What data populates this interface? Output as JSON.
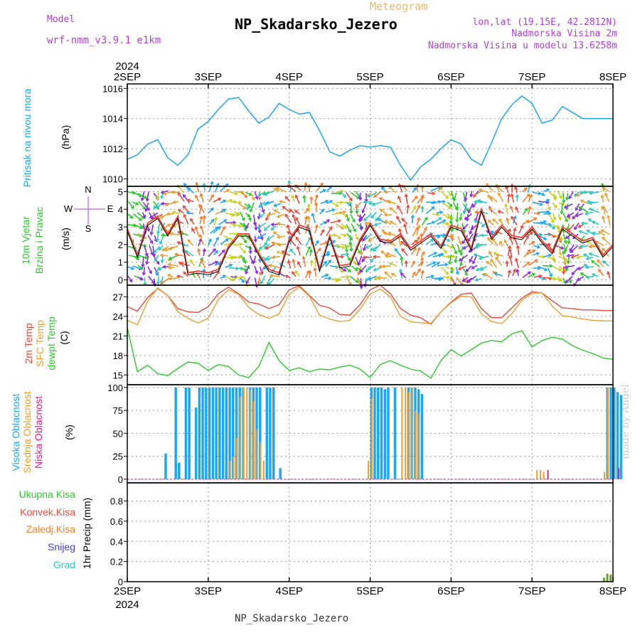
{
  "header": {
    "model_label": "Model",
    "model_name": "wrf-nmm_v3.9.1  e1km",
    "meteogram_label": "Meteogram",
    "station_title": "NP_Skadarsko_Jezero",
    "lonlat": "lon,lat (19.15E, 42.2812N)",
    "elevation": "Nadmorska Visina 2m",
    "model_elevation": "Nadmorska Visina u modelu 13.6258m",
    "footer_title": "NP_Skadarsko_Jezero",
    "watermark": "made by Angel"
  },
  "time_axis": {
    "year": "2024",
    "days": [
      "2SEP",
      "3SEP",
      "4SEP",
      "5SEP",
      "6SEP",
      "7SEP",
      "8SEP"
    ]
  },
  "panel_labels": {
    "pressure": {
      "name": "Pritisak na nivou mora",
      "unit": "(hPa)",
      "color": "#1ea7f0"
    },
    "wind": {
      "name1": "10m Vjetar",
      "name2": "Brzina i Pravac",
      "unit": "(m/s)",
      "compass_n": "N",
      "compass_s": "S",
      "compass_w": "W",
      "compass_e": "E",
      "color": "#2ec82e",
      "compass_color": "#b040d8"
    },
    "temp": {
      "t2": "2m Temp",
      "sfc": "SFC Temp",
      "dew": "dewpt Temp",
      "unit": "(C)",
      "t2_color": "#e84a3c",
      "sfc_color": "#e9a030",
      "dew_color": "#2ec82e"
    },
    "cloud": {
      "high": "Visoka Oblacnost",
      "mid": "Srednja Oblacnost",
      "low": "Niska Oblacnost",
      "unit": "(%)",
      "high_color": "#1ea7f0",
      "mid_color": "#e9a030",
      "low_color": "#e0208a"
    },
    "precip": {
      "ukupna": "Ukupna Kisa",
      "konvek": "Konvek.Kisa",
      "zaledj": "Zaledj.Kisa",
      "snijeg": "Snijeg",
      "grad": "Grad",
      "unit": "1hr Precip (mm)",
      "ukupna_color": "#2ec82e",
      "konvek_color": "#e84a3c",
      "zaledj_color": "#f08030",
      "snijeg_color": "#4040e0",
      "grad_color": "#30c8c0"
    }
  },
  "chart_data": [
    {
      "type": "line",
      "name": "pressure",
      "ylabel": "(hPa)",
      "ylim": [
        1009.5,
        1016.3
      ],
      "yticks": [
        1010,
        1012,
        1014,
        1016
      ],
      "x_hours": [
        0,
        3,
        6,
        9,
        12,
        15,
        18,
        21,
        24,
        27,
        30,
        33,
        36,
        39,
        42,
        45,
        48,
        51,
        54,
        57,
        60,
        63,
        66,
        69,
        72,
        75,
        78,
        81,
        84,
        87,
        90,
        93,
        96,
        99,
        102,
        105,
        108,
        111,
        114,
        117,
        120,
        123,
        126,
        129,
        132,
        135,
        138,
        141,
        144
      ],
      "series": [
        {
          "name": "Pritisak na nivou mora",
          "values": [
            1011.3,
            1011.6,
            1012.3,
            1012.6,
            1011.4,
            1010.9,
            1011.6,
            1013.3,
            1013.8,
            1014.6,
            1015.3,
            1015.4,
            1014.5,
            1013.7,
            1014.1,
            1015.0,
            1014.6,
            1014.3,
            1014.4,
            1013.2,
            1011.8,
            1011.5,
            1011.9,
            1012.2,
            1012.1,
            1012.2,
            1012.1,
            1010.9,
            1009.9,
            1010.8,
            1011.3,
            1012.0,
            1012.6,
            1012.3,
            1011.3,
            1010.9,
            1012.4,
            1014.0,
            1014.9,
            1015.5,
            1015.0,
            1013.7,
            1013.9,
            1014.8,
            1014.4,
            1014.0,
            1014.0,
            1014.0,
            1014.0
          ]
        }
      ]
    },
    {
      "type": "line",
      "name": "wind",
      "ylabel": "(m/s)",
      "ylim": [
        -0.3,
        5.3
      ],
      "yticks": [
        0,
        1,
        2,
        3,
        4,
        5
      ],
      "x_hours": [
        0,
        3,
        6,
        9,
        12,
        15,
        18,
        21,
        24,
        27,
        30,
        33,
        36,
        39,
        42,
        45,
        48,
        51,
        54,
        57,
        60,
        63,
        66,
        69,
        72,
        75,
        78,
        81,
        84,
        87,
        90,
        93,
        96,
        99,
        102,
        105,
        108,
        111,
        114,
        117,
        120,
        123,
        126,
        129,
        132,
        135,
        138,
        141,
        144
      ],
      "series": [
        {
          "name": "Brzina",
          "values": [
            2.9,
            1.4,
            3.2,
            3.6,
            2.6,
            3.6,
            0.4,
            0.5,
            0.4,
            0.6,
            1.9,
            2.6,
            2.6,
            1.5,
            0.6,
            0.4,
            2.3,
            3.1,
            2.9,
            0.6,
            2.5,
            0.8,
            0.9,
            2.3,
            3.2,
            2.3,
            2.2,
            2.6,
            1.8,
            2.2,
            2.6,
            1.9,
            3.1,
            2.9,
            1.8,
            4.0,
            2.4,
            3.1,
            2.5,
            2.4,
            3.0,
            2.2,
            1.6,
            3.0,
            2.6,
            2.2,
            2.4,
            1.4,
            2.0
          ]
        }
      ]
    },
    {
      "type": "line",
      "name": "temperature",
      "ylabel": "(C)",
      "ylim": [
        13.5,
        28.8
      ],
      "yticks": [
        15,
        18,
        21,
        24,
        27
      ],
      "x_hours": [
        0,
        3,
        6,
        9,
        12,
        15,
        18,
        21,
        24,
        27,
        30,
        33,
        36,
        39,
        42,
        45,
        48,
        51,
        54,
        57,
        60,
        63,
        66,
        69,
        72,
        75,
        78,
        81,
        84,
        87,
        90,
        93,
        96,
        99,
        102,
        105,
        108,
        111,
        114,
        117,
        120,
        123,
        126,
        129,
        132,
        135,
        138,
        141,
        144
      ],
      "series": [
        {
          "name": "2m Temp",
          "values": [
            25.5,
            24.8,
            26.9,
            28.3,
            27.2,
            25.2,
            24.7,
            24.6,
            25.5,
            27.5,
            28.5,
            27.5,
            26.2,
            25.9,
            25.2,
            25.8,
            28.1,
            28.7,
            27.2,
            25.7,
            25.3,
            24.3,
            24.2,
            25.8,
            28.1,
            28.8,
            27.5,
            25.2,
            24.2,
            23.8,
            22.8,
            24.7,
            26.2,
            27.4,
            27.6,
            25.2,
            23.8,
            23.8,
            25.3,
            26.8,
            27.8,
            27.6,
            26.4,
            25.3,
            25.2,
            25.0,
            25.0,
            24.9,
            24.9
          ]
        },
        {
          "name": "SFC Temp",
          "values": [
            23.4,
            22.7,
            26.3,
            28.4,
            27.2,
            24.7,
            23.7,
            23.0,
            23.7,
            26.6,
            28.1,
            27.4,
            25.4,
            24.3,
            23.7,
            24.4,
            27.4,
            28.5,
            27.1,
            24.2,
            23.6,
            23.2,
            23.4,
            25.1,
            27.4,
            28.2,
            27.0,
            24.0,
            23.2,
            23.0,
            22.9,
            24.7,
            26.1,
            27.1,
            27.0,
            24.4,
            23.2,
            22.9,
            24.4,
            26.5,
            27.6,
            27.6,
            25.6,
            24.1,
            23.9,
            23.6,
            23.4,
            23.3,
            23.3
          ]
        },
        {
          "name": "dewpt Temp",
          "values": [
            22.3,
            15.5,
            16.5,
            15.2,
            14.9,
            16.0,
            17.0,
            16.8,
            15.7,
            16.6,
            16.3,
            15.0,
            14.6,
            16.3,
            20.0,
            17.2,
            15.7,
            16.1,
            15.5,
            15.9,
            15.8,
            16.2,
            16.5,
            15.9,
            14.6,
            16.6,
            17.2,
            16.5,
            15.9,
            15.6,
            14.5,
            17.2,
            18.9,
            17.9,
            18.9,
            19.9,
            20.3,
            20.1,
            21.3,
            21.8,
            19.3,
            20.3,
            20.8,
            20.5,
            19.5,
            18.8,
            18.3,
            17.6,
            17.4
          ]
        }
      ]
    },
    {
      "type": "bar",
      "name": "cloud_cover",
      "ylabel": "(%)",
      "ylim": [
        -4,
        103
      ],
      "yticks": [
        0,
        25,
        50,
        75,
        100
      ],
      "series": [
        {
          "name": "Visoka Oblacnost",
          "x_hours": [
            11,
            14,
            15,
            17,
            18,
            20,
            21,
            22,
            23,
            24,
            25,
            26,
            27,
            28,
            29,
            30,
            31,
            32,
            33,
            34,
            36,
            37,
            38,
            39,
            41,
            42,
            43,
            45,
            72,
            73,
            74,
            75,
            76,
            77,
            79,
            83,
            84,
            85,
            86,
            87,
            142,
            143,
            144,
            145,
            146
          ],
          "values": [
            28,
            100,
            18,
            100,
            100,
            78,
            100,
            100,
            100,
            100,
            100,
            100,
            100,
            100,
            100,
            100,
            100,
            100,
            100,
            100,
            100,
            100,
            100,
            100,
            100,
            100,
            100,
            12,
            100,
            100,
            100,
            100,
            98,
            100,
            100,
            100,
            100,
            100,
            98,
            93,
            100,
            100,
            100,
            95,
            92
          ]
        },
        {
          "name": "Srednja Oblacnost",
          "x_hours": [
            30,
            31,
            32,
            33,
            34,
            35,
            36,
            37,
            38,
            39,
            40,
            71,
            72,
            81,
            82,
            83,
            84,
            85,
            86,
            121,
            122,
            123,
            141,
            142
          ],
          "values": [
            20,
            25,
            45,
            90,
            100,
            100,
            98,
            85,
            55,
            40,
            20,
            20,
            88,
            100,
            100,
            95,
            100,
            75,
            72,
            10,
            10,
            8,
            8,
            100
          ]
        },
        {
          "name": "Niska Oblacnost",
          "x_hours": [
            124,
            145
          ],
          "values": [
            10,
            12
          ]
        }
      ]
    },
    {
      "type": "bar",
      "name": "precipitation",
      "ylabel": "1hr Precip (mm)",
      "ylim": [
        0,
        0.98
      ],
      "yticks": [
        0,
        0.2,
        0.4,
        0.6,
        0.8
      ],
      "series": [
        {
          "name": "Ukupna Kisa",
          "x_hours": [
            141,
            142,
            143
          ],
          "values": [
            0.04,
            0.08,
            0.07
          ]
        }
      ]
    }
  ]
}
